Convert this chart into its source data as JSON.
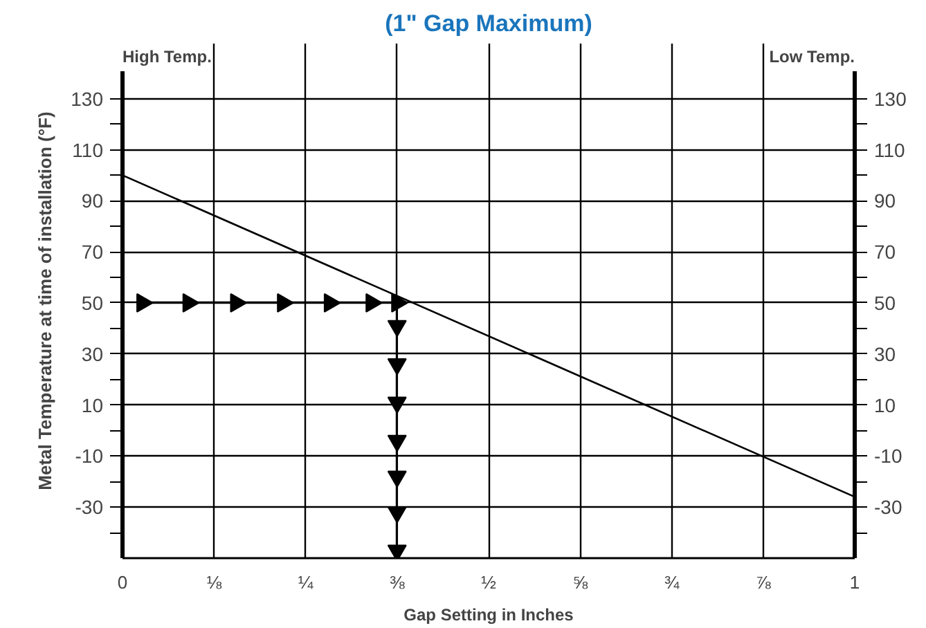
{
  "chart_data": {
    "type": "line",
    "title": "(1\" Gap Maximum)",
    "xlabel": "Gap Setting in Inches",
    "ylabel": "Metal Temperature at time of installation (°F)",
    "annotations": [
      "High Temp.",
      "Low Temp."
    ],
    "series": [
      {
        "x": [
          0,
          1
        ],
        "values": [
          100,
          -26
        ],
        "color": "#000000",
        "marker": "none"
      },
      {
        "x": [
          0.027,
          0.09,
          0.155,
          0.219,
          0.283,
          0.34,
          0.375,
          0.375,
          0.375,
          0.375,
          0.375,
          0.375,
          0.375,
          0.375
        ],
        "values": [
          50,
          50,
          50,
          50,
          50,
          50,
          50,
          41,
          26,
          11,
          -4,
          -18,
          -32,
          -47
        ],
        "color": "#000000",
        "marker": "triangle"
      }
    ],
    "xlim": [
      0,
      1
    ],
    "xticks": [
      0,
      {
        "value": 0.125,
        "label": "⅛"
      },
      {
        "value": 0.25,
        "label": "¼"
      },
      {
        "value": 0.375,
        "label": "⅜"
      },
      {
        "value": 0.5,
        "label": "½"
      },
      {
        "value": 0.625,
        "label": "⅝"
      },
      {
        "value": 0.75,
        "label": "¾"
      },
      {
        "value": 0.875,
        "label": "⅞"
      },
      1
    ],
    "ylim": [
      -50,
      130
    ],
    "yticks": [
      {
        "value": -40,
        "label": null
      },
      -30,
      {
        "value": -20,
        "label": null
      },
      -10,
      {
        "value": 0,
        "label": null
      },
      10,
      {
        "value": 20,
        "label": null
      },
      30,
      {
        "value": 40,
        "label": null
      },
      50,
      {
        "value": 60,
        "label": null
      },
      70,
      {
        "value": 80,
        "label": null
      },
      90,
      {
        "value": 100,
        "label": null
      },
      110,
      {
        "value": 120,
        "label": null
      },
      130
    ],
    "y2lim": [
      -50,
      130
    ],
    "y2ticks": [
      {
        "value": -40,
        "label": null
      },
      -30,
      {
        "value": -20,
        "label": null
      },
      -10,
      {
        "value": 0,
        "label": null
      },
      10,
      {
        "value": 20,
        "label": null
      },
      30,
      {
        "value": 40,
        "label": null
      },
      50,
      {
        "value": 60,
        "label": null
      },
      70,
      {
        "value": 80,
        "label": null
      },
      90,
      {
        "value": 100,
        "label": null
      },
      110,
      {
        "value": 120,
        "label": null
      },
      130
    ],
    "grid": true
  }
}
